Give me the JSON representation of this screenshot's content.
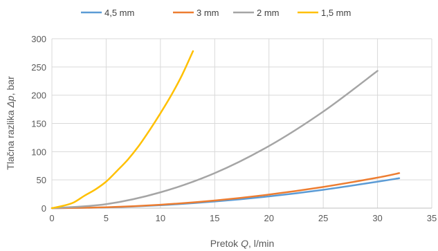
{
  "chart_data": {
    "type": "line",
    "title": "",
    "xlabel_parts": [
      "Pretok ",
      "Q",
      ", l/min"
    ],
    "ylabel_parts": [
      "Tlačna razlika ",
      "Δp",
      ", bar"
    ],
    "xlim": [
      0,
      35
    ],
    "ylim": [
      0,
      300
    ],
    "xticks": [
      "0",
      "5",
      "10",
      "15",
      "20",
      "25",
      "30",
      "35"
    ],
    "yticks": [
      "0",
      "50",
      "100",
      "150",
      "200",
      "250",
      "300"
    ],
    "grid": true,
    "legend_position": "top",
    "series": [
      {
        "name": "4,5 mm",
        "color": "#5B9BD5",
        "x": [
          0,
          5,
          10,
          15,
          20,
          25,
          30,
          32
        ],
        "y": [
          0,
          1.3,
          5.2,
          11.7,
          20.8,
          32.5,
          46.8,
          53
        ]
      },
      {
        "name": "3 mm",
        "color": "#ED7D31",
        "x": [
          0,
          5,
          10,
          15,
          20,
          25,
          30,
          32
        ],
        "y": [
          0,
          1.5,
          6,
          13.5,
          24,
          37.5,
          54,
          62
        ]
      },
      {
        "name": "2 mm",
        "color": "#A5A5A5",
        "x": [
          0,
          5,
          10,
          15,
          20,
          25,
          30
        ],
        "y": [
          0,
          7,
          28,
          62,
          110,
          171,
          243
        ]
      },
      {
        "name": "1,5 mm",
        "color": "#FFC000",
        "x": [
          0,
          1,
          2,
          3,
          4,
          5,
          6,
          7,
          8,
          9,
          10,
          11,
          12,
          13
        ],
        "y": [
          0,
          4,
          10,
          22,
          33,
          47,
          66,
          86,
          110,
          138,
          168,
          200,
          236,
          278
        ]
      }
    ]
  }
}
